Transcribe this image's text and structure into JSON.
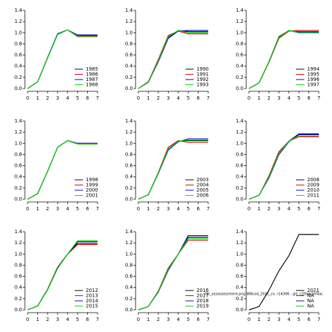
{
  "chart_data": [
    {
      "type": "line",
      "x": [
        0,
        1,
        2,
        3,
        4,
        5,
        6,
        7
      ],
      "xlim": [
        0,
        7
      ],
      "xticks": [
        0,
        1,
        2,
        3,
        4,
        5,
        6,
        7
      ],
      "ylim": [
        0,
        1.4
      ],
      "yticks": [
        {
          "value": 0,
          "label": "0.0"
        },
        0.2,
        0.4,
        0.6,
        0.8,
        {
          "value": 1,
          "label": "1.0"
        },
        1.2,
        1.4
      ],
      "series": [
        {
          "name": "1985",
          "color": "#000000",
          "values": [
            0,
            0.12,
            0.55,
            0.97,
            1.05,
            0.95,
            0.95,
            0.95
          ]
        },
        {
          "name": "1986",
          "color": "#dd0000",
          "values": [
            0,
            0.12,
            0.55,
            0.98,
            1.05,
            0.93,
            0.93,
            0.93
          ]
        },
        {
          "name": "1987",
          "color": "#0000cc",
          "values": [
            0,
            0.12,
            0.56,
            0.98,
            1.05,
            0.96,
            0.96,
            0.96
          ]
        },
        {
          "name": "1988",
          "color": "#00dd00",
          "values": [
            0,
            0.12,
            0.55,
            0.97,
            1.05,
            0.94,
            0.94,
            0.94
          ]
        }
      ]
    },
    {
      "type": "line",
      "x": [
        0,
        1,
        2,
        3,
        4,
        5,
        6,
        7
      ],
      "xlim": [
        0,
        7
      ],
      "xticks": [
        0,
        1,
        2,
        3,
        4,
        5,
        6,
        7
      ],
      "ylim": [
        0,
        1.4
      ],
      "yticks": [
        {
          "value": 0,
          "label": "0.0"
        },
        0.2,
        0.4,
        0.6,
        0.8,
        {
          "value": 1,
          "label": "1.0"
        },
        1.2,
        1.4
      ],
      "series": [
        {
          "name": "1990",
          "color": "#000000",
          "values": [
            0,
            0.12,
            0.5,
            0.92,
            1.04,
            1.02,
            1.02,
            1.02
          ]
        },
        {
          "name": "1991",
          "color": "#dd0000",
          "values": [
            0,
            0.12,
            0.52,
            0.95,
            1.03,
            0.98,
            0.98,
            0.98
          ]
        },
        {
          "name": "1992",
          "color": "#0000cc",
          "values": [
            0,
            0.11,
            0.48,
            0.9,
            1.03,
            1.04,
            1.04,
            1.04
          ]
        },
        {
          "name": "1993",
          "color": "#00dd00",
          "values": [
            0,
            0.11,
            0.5,
            0.93,
            1.04,
            1.0,
            1.0,
            1.0
          ]
        }
      ]
    },
    {
      "type": "line",
      "x": [
        0,
        1,
        2,
        3,
        4,
        5,
        6,
        7
      ],
      "xlim": [
        0,
        7
      ],
      "xticks": [
        0,
        1,
        2,
        3,
        4,
        5,
        6,
        7
      ],
      "ylim": [
        0,
        1.4
      ],
      "yticks": [
        {
          "value": 0,
          "label": "0.0"
        },
        0.2,
        0.4,
        0.6,
        0.8,
        {
          "value": 1,
          "label": "1.0"
        },
        1.2,
        1.4
      ],
      "series": [
        {
          "name": "1994",
          "color": "#000000",
          "values": [
            0,
            0.1,
            0.48,
            0.93,
            1.04,
            1.02,
            1.02,
            1.02
          ]
        },
        {
          "name": "1995",
          "color": "#dd0000",
          "values": [
            0,
            0.1,
            0.47,
            0.9,
            1.03,
            1.04,
            1.04,
            1.04
          ]
        },
        {
          "name": "1996",
          "color": "#0000cc",
          "values": [
            0,
            0.1,
            0.48,
            0.92,
            1.04,
            1.0,
            1.0,
            1.0
          ]
        },
        {
          "name": "1997",
          "color": "#00dd00",
          "values": [
            0,
            0.1,
            0.48,
            0.92,
            1.04,
            1.01,
            1.01,
            1.01
          ]
        }
      ]
    },
    {
      "type": "line",
      "x": [
        0,
        1,
        2,
        3,
        4,
        5,
        6,
        7
      ],
      "xlim": [
        0,
        7
      ],
      "xticks": [
        0,
        1,
        2,
        3,
        4,
        5,
        6,
        7
      ],
      "ylim": [
        0,
        1.4
      ],
      "yticks": [
        {
          "value": 0,
          "label": "0.0"
        },
        0.2,
        0.4,
        0.6,
        0.8,
        {
          "value": 1,
          "label": "1.0"
        },
        1.2,
        1.4
      ],
      "series": [
        {
          "name": "1998",
          "color": "#000000",
          "values": [
            0,
            0.1,
            0.5,
            0.93,
            1.05,
            1.0,
            1.0,
            1.0
          ]
        },
        {
          "name": "1999",
          "color": "#dd0000",
          "values": [
            0,
            0.1,
            0.5,
            0.93,
            1.05,
            0.99,
            0.99,
            0.99
          ]
        },
        {
          "name": "2000",
          "color": "#0000cc",
          "values": [
            0,
            0.1,
            0.5,
            0.93,
            1.05,
            1.0,
            1.0,
            1.0
          ]
        },
        {
          "name": "2001",
          "color": "#00dd00",
          "values": [
            0,
            0.1,
            0.5,
            0.93,
            1.05,
            0.99,
            0.99,
            0.99
          ]
        }
      ]
    },
    {
      "type": "line",
      "x": [
        0,
        1,
        2,
        3,
        4,
        5,
        6,
        7
      ],
      "xlim": [
        0,
        7
      ],
      "xticks": [
        0,
        1,
        2,
        3,
        4,
        5,
        6,
        7
      ],
      "ylim": [
        0,
        1.4
      ],
      "yticks": [
        {
          "value": 0,
          "label": "0.0"
        },
        0.2,
        0.4,
        0.6,
        0.8,
        {
          "value": 1,
          "label": "1.0"
        },
        1.2,
        1.4
      ],
      "series": [
        {
          "name": "2003",
          "color": "#000000",
          "values": [
            0,
            0.08,
            0.47,
            0.9,
            1.04,
            1.05,
            1.05,
            1.05
          ]
        },
        {
          "name": "2004",
          "color": "#dd0000",
          "values": [
            0,
            0.08,
            0.48,
            0.93,
            1.05,
            1.02,
            1.02,
            1.02
          ]
        },
        {
          "name": "2005",
          "color": "#0000cc",
          "values": [
            0,
            0.08,
            0.46,
            0.88,
            1.03,
            1.08,
            1.08,
            1.08
          ]
        },
        {
          "name": "2006",
          "color": "#00dd00",
          "values": [
            0,
            0.08,
            0.47,
            0.9,
            1.04,
            1.06,
            1.06,
            1.06
          ]
        }
      ]
    },
    {
      "type": "line",
      "x": [
        0,
        1,
        2,
        3,
        4,
        5,
        6,
        7
      ],
      "xlim": [
        0,
        7
      ],
      "xticks": [
        0,
        1,
        2,
        3,
        4,
        5,
        6,
        7
      ],
      "ylim": [
        0,
        1.4
      ],
      "yticks": [
        {
          "value": 0,
          "label": "0.0"
        },
        0.2,
        0.4,
        0.6,
        0.8,
        {
          "value": 1,
          "label": "1.0"
        },
        1.2,
        1.4
      ],
      "series": [
        {
          "name": "2008",
          "color": "#000000",
          "values": [
            0,
            0.07,
            0.4,
            0.82,
            1.04,
            1.17,
            1.17,
            1.17
          ]
        },
        {
          "name": "2009",
          "color": "#dd0000",
          "values": [
            0,
            0.07,
            0.42,
            0.85,
            1.04,
            1.12,
            1.12,
            1.12
          ]
        },
        {
          "name": "2010",
          "color": "#0000cc",
          "values": [
            0,
            0.07,
            0.38,
            0.8,
            1.03,
            1.16,
            1.16,
            1.16
          ]
        },
        {
          "name": "2011",
          "color": "#00dd00",
          "values": [
            0,
            0.07,
            0.4,
            0.82,
            1.04,
            1.14,
            1.14,
            1.14
          ]
        }
      ]
    },
    {
      "type": "line",
      "x": [
        0,
        1,
        2,
        3,
        4,
        5,
        6,
        7
      ],
      "xlim": [
        0,
        7
      ],
      "xticks": [
        0,
        1,
        2,
        3,
        4,
        5,
        6,
        7
      ],
      "ylim": [
        0,
        1.4
      ],
      "yticks": [
        {
          "value": 0,
          "label": "0.0"
        },
        0.2,
        0.4,
        0.6,
        0.8,
        {
          "value": 1,
          "label": "1.0"
        },
        1.2,
        1.4
      ],
      "series": [
        {
          "name": "2012",
          "color": "#000000",
          "values": [
            0,
            0.07,
            0.37,
            0.76,
            1.0,
            1.19,
            1.19,
            1.19
          ]
        },
        {
          "name": "2013",
          "color": "#dd0000",
          "values": [
            0,
            0.07,
            0.37,
            0.76,
            1.0,
            1.17,
            1.17,
            1.17
          ]
        },
        {
          "name": "2014",
          "color": "#0000cc",
          "values": [
            0,
            0.07,
            0.36,
            0.75,
            1.0,
            1.22,
            1.22,
            1.22
          ]
        },
        {
          "name": "2015",
          "color": "#00dd00",
          "values": [
            0,
            0.07,
            0.36,
            0.74,
            1.0,
            1.24,
            1.24,
            1.24
          ]
        }
      ]
    },
    {
      "type": "line",
      "x": [
        0,
        1,
        2,
        3,
        4,
        5,
        6,
        7
      ],
      "xlim": [
        0,
        7
      ],
      "xticks": [
        0,
        1,
        2,
        3,
        4,
        5,
        6,
        7
      ],
      "ylim": [
        0,
        1.4
      ],
      "yticks": [
        {
          "value": 0,
          "label": "0.0"
        },
        0.2,
        0.4,
        0.6,
        0.8,
        {
          "value": 1,
          "label": "1.0"
        },
        1.2,
        1.4
      ],
      "series": [
        {
          "name": "2016",
          "color": "#000000",
          "values": [
            0,
            0.06,
            0.33,
            0.73,
            1.0,
            1.3,
            1.3,
            1.3
          ]
        },
        {
          "name": "2017",
          "color": "#dd0000",
          "values": [
            0,
            0.06,
            0.34,
            0.75,
            1.0,
            1.25,
            1.25,
            1.25
          ]
        },
        {
          "name": "2018",
          "color": "#0000cc",
          "values": [
            0,
            0.06,
            0.32,
            0.71,
            1.0,
            1.33,
            1.33,
            1.33
          ]
        },
        {
          "name": "2019",
          "color": "#00dd00",
          "values": [
            0,
            0.06,
            0.33,
            0.73,
            1.0,
            1.28,
            1.28,
            1.28
          ]
        }
      ]
    },
    {
      "type": "line",
      "x": [
        0,
        1,
        2,
        3,
        4,
        5,
        6,
        7
      ],
      "xlim": [
        0,
        7
      ],
      "xticks": [
        0,
        1,
        2,
        3,
        4,
        5,
        6,
        7
      ],
      "ylim": [
        0,
        1.4
      ],
      "yticks": [
        {
          "value": 0,
          "label": "0.0"
        },
        0.2,
        0.4,
        0.6,
        0.8,
        {
          "value": 1,
          "label": "1.0"
        },
        1.2,
        1.4
      ],
      "annotation": "Dlr_sasassessment.png WBcod_2021_cv, r14306 , git: c2f0ab2ef4ac",
      "series": [
        {
          "name": "2021",
          "color": "#000000",
          "values": [
            0,
            0.06,
            0.35,
            0.7,
            0.97,
            1.35,
            1.35,
            1.35
          ]
        },
        {
          "name": "NA",
          "color": "#dd0000",
          "values": [
            null,
            null,
            null,
            null,
            null,
            null,
            null,
            null
          ]
        },
        {
          "name": "NA",
          "color": "#0000cc",
          "values": [
            null,
            null,
            null,
            null,
            null,
            null,
            null,
            null
          ]
        },
        {
          "name": "NA",
          "color": "#00dd00",
          "values": [
            null,
            null,
            null,
            null,
            null,
            null,
            null,
            null
          ]
        }
      ]
    }
  ]
}
